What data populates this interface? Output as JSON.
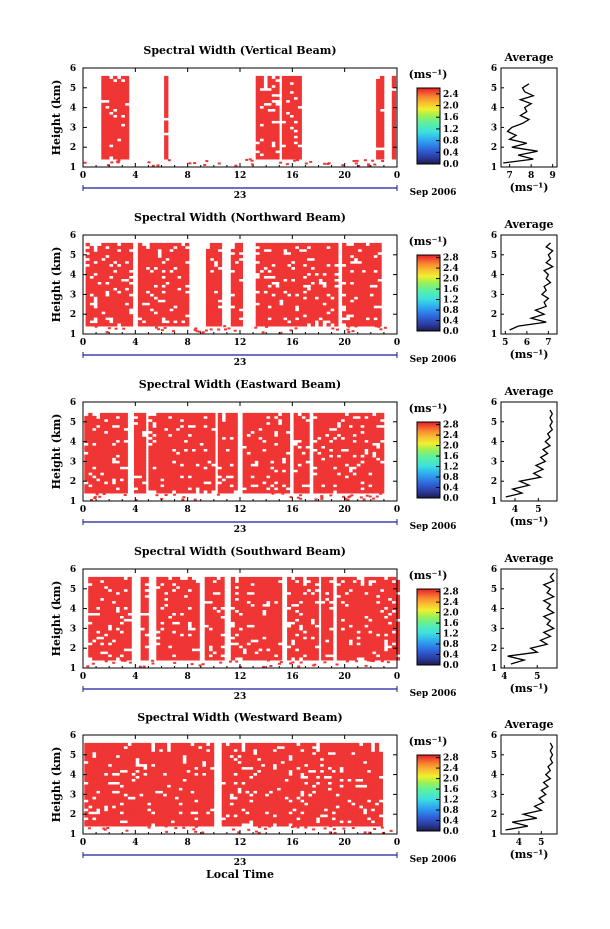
{
  "figure": {
    "xlabel": "Local Time",
    "date_label": "Sep 2006",
    "day_label": "23",
    "colorbar_unit": "(ms⁻¹)",
    "avg_title": "Average",
    "avg_unit": "(ms⁻¹)",
    "ylabel": "Height (km)"
  },
  "chart_data": [
    {
      "type": "heatmap",
      "title": "Spectral Width (Vertical Beam)",
      "ylabel": "Height (km)",
      "x_ticks": [
        "0",
        "4",
        "8",
        "12",
        "16",
        "20",
        "0"
      ],
      "xlim": [
        0,
        24
      ],
      "y_ticks": [
        "1",
        "2",
        "3",
        "4",
        "5",
        "6"
      ],
      "ylim": [
        1,
        6
      ],
      "colorbar_ticks": [
        "0.0",
        "0.4",
        "0.8",
        "1.2",
        "1.6",
        "2.0",
        "2.4"
      ],
      "colorbar_range": [
        0,
        2.6
      ],
      "dominant_value_ms": 2.6,
      "columns_with_data_hours": [
        [
          1.4,
          3.3
        ],
        [
          6.2,
          6.5
        ],
        [
          13.2,
          15.0
        ],
        [
          15.2,
          16.6
        ],
        [
          22.4,
          22.9
        ],
        [
          23.6,
          23.9
        ]
      ],
      "average_profile": {
        "x_ticks": [
          "7",
          "8",
          "9"
        ],
        "xlim": [
          6.6,
          9.2
        ],
        "heights_km": [
          1.2,
          1.4,
          1.6,
          1.8,
          2.0,
          2.2,
          2.4,
          2.6,
          2.8,
          3.0,
          3.2,
          3.4,
          3.6,
          3.8,
          4.0,
          4.2,
          4.4,
          4.6,
          4.8,
          5.0,
          5.2
        ],
        "values_ms": [
          6.7,
          8.1,
          7.4,
          8.3,
          7.1,
          7.8,
          7.0,
          7.3,
          6.9,
          7.1,
          7.6,
          7.9,
          7.5,
          7.8,
          7.7,
          8.0,
          7.5,
          8.1,
          7.7,
          7.6,
          7.9
        ]
      }
    },
    {
      "type": "heatmap",
      "title": "Spectral Width (Northward Beam)",
      "ylabel": "Height (km)",
      "x_ticks": [
        "0",
        "4",
        "8",
        "12",
        "16",
        "20",
        "0"
      ],
      "xlim": [
        0,
        24
      ],
      "y_ticks": [
        "1",
        "2",
        "3",
        "4",
        "5",
        "6"
      ],
      "ylim": [
        1,
        6
      ],
      "colorbar_ticks": [
        "0.0",
        "0.4",
        "0.8",
        "1.2",
        "1.6",
        "2.0",
        "2.4",
        "2.8"
      ],
      "colorbar_range": [
        0,
        2.9
      ],
      "dominant_value_ms": 2.9,
      "columns_with_data_hours": [
        [
          0.2,
          3.6
        ],
        [
          4.2,
          8.0
        ],
        [
          9.4,
          10.6
        ],
        [
          11.3,
          12.1
        ],
        [
          13.2,
          19.4
        ],
        [
          19.8,
          22.7
        ]
      ],
      "average_profile": {
        "x_ticks": [
          "5",
          "6",
          "7"
        ],
        "xlim": [
          4.8,
          7.4
        ],
        "heights_km": [
          1.2,
          1.4,
          1.6,
          1.8,
          2.0,
          2.2,
          2.4,
          2.6,
          2.8,
          3.0,
          3.2,
          3.4,
          3.6,
          3.8,
          4.0,
          4.2,
          4.4,
          4.6,
          4.8,
          5.0,
          5.2,
          5.4,
          5.6
        ],
        "values_ms": [
          5.2,
          5.6,
          6.9,
          6.2,
          6.8,
          6.4,
          6.9,
          6.8,
          7.0,
          6.7,
          6.9,
          6.8,
          7.1,
          6.9,
          7.0,
          6.8,
          7.2,
          6.9,
          7.1,
          7.0,
          7.2,
          6.9,
          7.1
        ]
      }
    },
    {
      "type": "heatmap",
      "title": "Spectral Width (Eastward Beam)",
      "ylabel": "Height (km)",
      "x_ticks": [
        "0",
        "4",
        "8",
        "12",
        "16",
        "20",
        "0"
      ],
      "xlim": [
        0,
        24
      ],
      "y_ticks": [
        "1",
        "2",
        "3",
        "4",
        "5",
        "6"
      ],
      "ylim": [
        1,
        6
      ],
      "colorbar_ticks": [
        "0.0",
        "0.4",
        "0.8",
        "1.2",
        "1.6",
        "2.0",
        "2.4",
        "2.8"
      ],
      "colorbar_range": [
        0,
        2.9
      ],
      "dominant_value_ms": 2.9,
      "columns_with_data_hours": [
        [
          0.1,
          3.3
        ],
        [
          3.9,
          4.8
        ],
        [
          5.0,
          7.2
        ],
        [
          7.4,
          10.0
        ],
        [
          10.3,
          11.8
        ],
        [
          12.2,
          15.6
        ],
        [
          16.1,
          17.2
        ],
        [
          17.6,
          18.9
        ],
        [
          19.1,
          22.8
        ]
      ],
      "average_profile": {
        "x_ticks": [
          "4",
          "5"
        ],
        "xlim": [
          3.4,
          5.8
        ],
        "heights_km": [
          1.2,
          1.4,
          1.6,
          1.8,
          2.0,
          2.2,
          2.4,
          2.6,
          2.8,
          3.0,
          3.2,
          3.4,
          3.6,
          3.8,
          4.0,
          4.2,
          4.4,
          4.6,
          4.8,
          5.0,
          5.2,
          5.4,
          5.6
        ],
        "values_ms": [
          3.6,
          4.3,
          3.9,
          4.6,
          4.2,
          5.1,
          4.8,
          5.2,
          4.9,
          5.3,
          5.1,
          5.4,
          5.2,
          5.5,
          5.3,
          5.5,
          5.4,
          5.6,
          5.5,
          5.6,
          5.5,
          5.6,
          5.5
        ]
      }
    },
    {
      "type": "heatmap",
      "title": "Spectral Width (Southward Beam)",
      "ylabel": "Height (km)",
      "x_ticks": [
        "0",
        "4",
        "8",
        "12",
        "16",
        "20",
        "0"
      ],
      "xlim": [
        0,
        24
      ],
      "y_ticks": [
        "1",
        "2",
        "3",
        "4",
        "5",
        "6"
      ],
      "ylim": [
        1,
        6
      ],
      "colorbar_ticks": [
        "0.0",
        "0.4",
        "0.8",
        "1.2",
        "1.6",
        "2.0",
        "2.4",
        "2.8"
      ],
      "colorbar_range": [
        0,
        2.9
      ],
      "dominant_value_ms": 2.9,
      "columns_with_data_hours": [
        [
          0.4,
          3.6
        ],
        [
          4.4,
          5.0
        ],
        [
          5.6,
          8.9
        ],
        [
          9.3,
          10.8
        ],
        [
          11.3,
          15.2
        ],
        [
          15.6,
          17.9
        ],
        [
          18.2,
          19.1
        ],
        [
          19.4,
          24.0
        ]
      ],
      "average_profile": {
        "x_ticks": [
          "4",
          "5"
        ],
        "xlim": [
          3.9,
          5.6
        ],
        "heights_km": [
          1.2,
          1.4,
          1.6,
          1.8,
          2.0,
          2.2,
          2.4,
          2.6,
          2.8,
          3.0,
          3.2,
          3.4,
          3.6,
          3.8,
          4.0,
          4.2,
          4.4,
          4.6,
          4.8,
          5.0,
          5.2,
          5.4,
          5.6,
          5.8
        ],
        "values_ms": [
          4.2,
          4.6,
          4.1,
          5.0,
          4.8,
          5.3,
          5.1,
          5.4,
          5.2,
          5.5,
          5.3,
          5.4,
          5.2,
          5.5,
          5.3,
          5.4,
          5.2,
          5.5,
          5.3,
          5.4,
          5.2,
          5.5,
          5.4,
          5.5
        ]
      }
    },
    {
      "type": "heatmap",
      "title": "Spectral Width (Westward Beam)",
      "ylabel": "Height (km)",
      "x_ticks": [
        "0",
        "4",
        "8",
        "12",
        "16",
        "20",
        "0"
      ],
      "xlim": [
        0,
        24
      ],
      "y_ticks": [
        "1",
        "2",
        "3",
        "4",
        "5",
        "6"
      ],
      "ylim": [
        1,
        6
      ],
      "colorbar_ticks": [
        "0.0",
        "0.4",
        "0.8",
        "1.2",
        "1.6",
        "2.0",
        "2.4",
        "2.8"
      ],
      "colorbar_range": [
        0,
        2.9
      ],
      "dominant_value_ms": 2.9,
      "columns_with_data_hours": [
        [
          0.1,
          10.0
        ],
        [
          10.6,
          22.9
        ]
      ],
      "average_profile": {
        "x_ticks": [
          "4",
          "5"
        ],
        "xlim": [
          3.2,
          5.7
        ],
        "heights_km": [
          1.2,
          1.4,
          1.6,
          1.8,
          2.0,
          2.2,
          2.4,
          2.6,
          2.8,
          3.0,
          3.2,
          3.4,
          3.6,
          3.8,
          4.0,
          4.2,
          4.4,
          4.6,
          4.8,
          5.0,
          5.2,
          5.4,
          5.6
        ],
        "values_ms": [
          3.4,
          4.4,
          3.7,
          4.8,
          4.2,
          5.0,
          4.7,
          5.1,
          4.9,
          5.2,
          5.0,
          5.3,
          5.1,
          5.4,
          5.2,
          5.4,
          5.3,
          5.5,
          5.4,
          5.5,
          5.4,
          5.5,
          5.4
        ]
      }
    }
  ],
  "colors": {
    "data_red": "#f03535",
    "axis_blue": "#1a1aa0",
    "colormap": [
      "#1b1b4a",
      "#2b3a9a",
      "#2f60d8",
      "#2fa0f0",
      "#3ce0e0",
      "#5cf0a0",
      "#a0f050",
      "#f0f030",
      "#f8c030",
      "#f88a30",
      "#f04a30",
      "#e02020"
    ]
  }
}
